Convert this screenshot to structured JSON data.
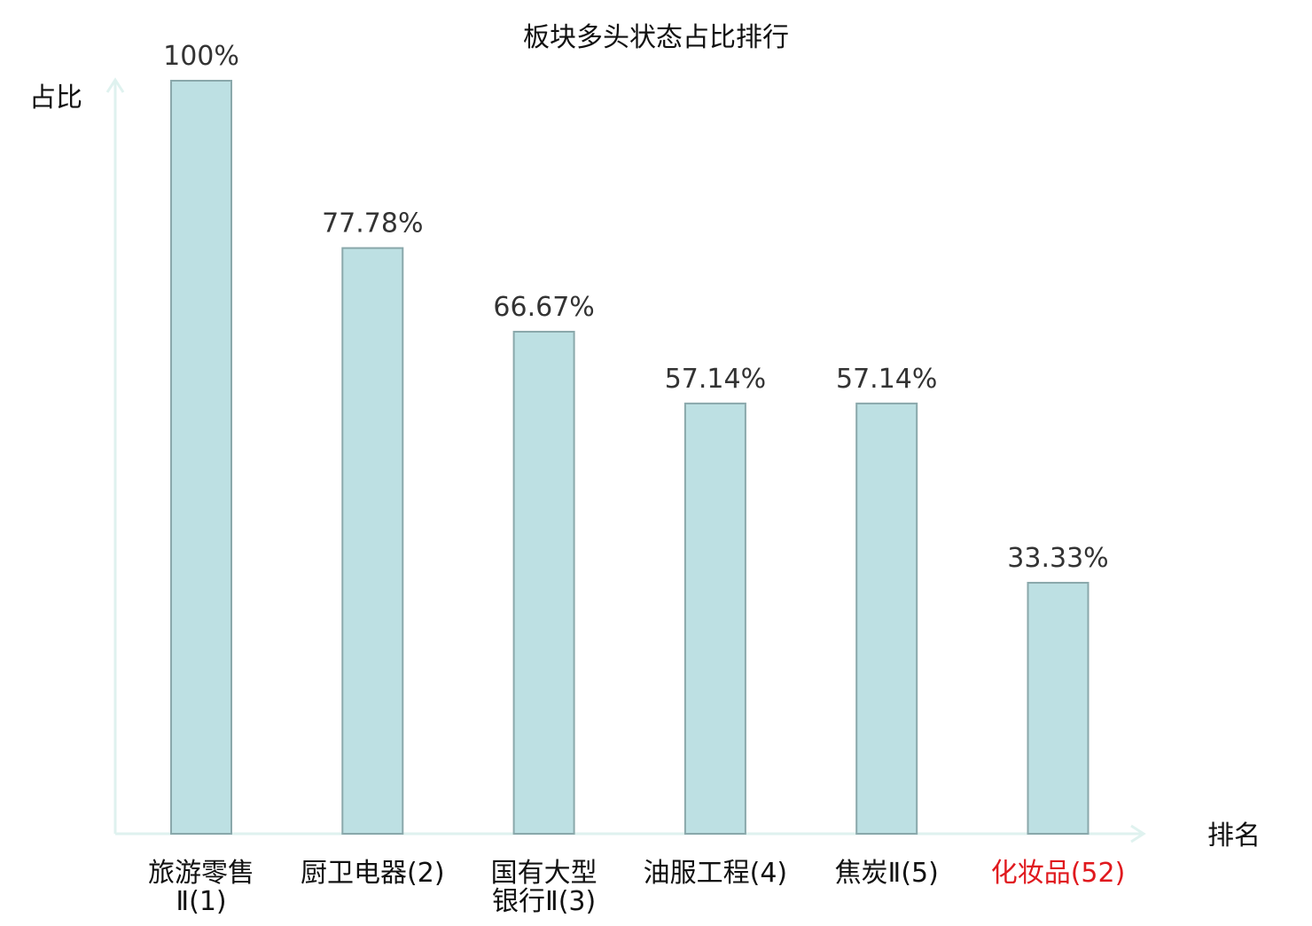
{
  "chart_data": {
    "type": "bar",
    "title": "板块多头状态占比排行",
    "ylabel": "占比",
    "xlabel": "排名",
    "ylim": [
      0,
      100
    ],
    "grid": false,
    "categories": [
      {
        "lines": [
          "旅游零售",
          "Ⅱ(1)"
        ],
        "highlight": false
      },
      {
        "lines": [
          "厨卫电器(2)"
        ],
        "highlight": false
      },
      {
        "lines": [
          "国有大型",
          "银行Ⅱ(3)"
        ],
        "highlight": false
      },
      {
        "lines": [
          "油服工程(4)"
        ],
        "highlight": false
      },
      {
        "lines": [
          "焦炭Ⅱ(5)"
        ],
        "highlight": false
      },
      {
        "lines": [
          "化妆品(52)"
        ],
        "highlight": true
      }
    ],
    "values": [
      100,
      77.78,
      66.67,
      57.14,
      57.14,
      33.33
    ],
    "value_labels": [
      "100%",
      "77.78%",
      "66.67%",
      "57.14%",
      "57.14%",
      "33.33%"
    ]
  },
  "colors": {
    "bar_fill": "#bde0e3",
    "bar_stroke": "#8aa8ab",
    "axis": "#dff2ef",
    "text": "#333333",
    "label": "#111111",
    "highlight": "#e0191e"
  }
}
